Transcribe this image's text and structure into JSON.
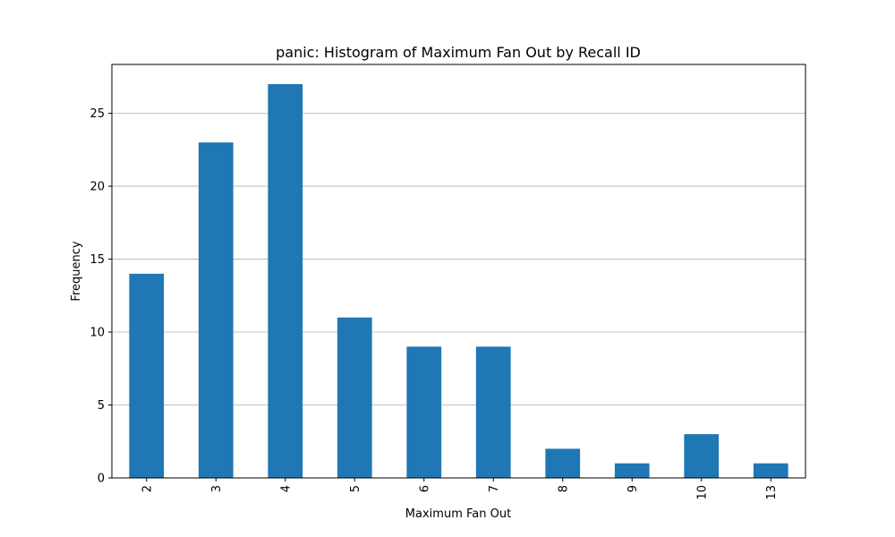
{
  "chart_data": {
    "type": "bar",
    "title": "panic: Histogram of Maximum Fan Out by Recall ID",
    "xlabel": "Maximum Fan Out",
    "ylabel": "Frequency",
    "categories": [
      "2",
      "3",
      "4",
      "5",
      "6",
      "7",
      "8",
      "9",
      "10",
      "13"
    ],
    "values": [
      14,
      23,
      27,
      11,
      9,
      9,
      2,
      1,
      3,
      1
    ],
    "ylim": [
      0,
      28.35
    ],
    "yticks": [
      0,
      5,
      10,
      15,
      20,
      25
    ],
    "ytick_labels": [
      "0",
      "5",
      "10",
      "15",
      "20",
      "25"
    ],
    "grid": "y-axis",
    "legend": "none",
    "bar_color": "#1f77b4"
  }
}
